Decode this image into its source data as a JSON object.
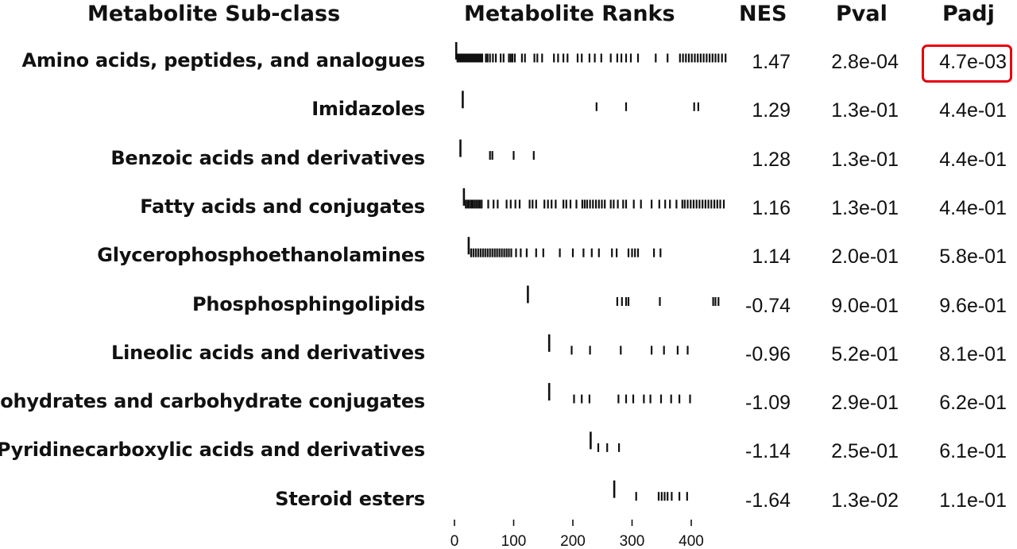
{
  "headers": {
    "name": "Metabolite Sub-class",
    "ranks": "Metabolite Ranks",
    "nes": "NES",
    "pval": "Pval",
    "padj": "Padj"
  },
  "highlight_color": "#e8000b",
  "chart_data": {
    "type": "table",
    "x_axis": {
      "ticks": [
        0,
        100,
        200,
        300,
        400
      ],
      "range": [
        0,
        460
      ]
    },
    "rows": [
      {
        "name": "Amino acids, peptides, and analogues",
        "nes": "1.47",
        "pval": "2.8e-04",
        "padj": "4.7e-03",
        "highlighted": true,
        "ranks": [
          3,
          5,
          7,
          9,
          11,
          13,
          15,
          17,
          19,
          21,
          23,
          25,
          27,
          29,
          31,
          33,
          35,
          37,
          39,
          41,
          43,
          45,
          47,
          53,
          56,
          60,
          65,
          70,
          78,
          83,
          92,
          95,
          98,
          102,
          114,
          119,
          135,
          140,
          148,
          168,
          175,
          184,
          191,
          208,
          215,
          228,
          237,
          248,
          264,
          275,
          282,
          290,
          298,
          310,
          340,
          360,
          381,
          386,
          391,
          396,
          401,
          406,
          411,
          416,
          421,
          426,
          431,
          436,
          441,
          446,
          452,
          458
        ]
      },
      {
        "name": "Imidazoles",
        "nes": "1.29",
        "pval": "1.3e-01",
        "padj": "4.4e-01",
        "highlighted": false,
        "ranks": [
          14,
          240,
          290,
          405,
          412
        ]
      },
      {
        "name": "Benzoic acids and derivatives",
        "nes": "1.28",
        "pval": "1.3e-01",
        "padj": "4.4e-01",
        "highlighted": false,
        "ranks": [
          10,
          60,
          64,
          100,
          134
        ]
      },
      {
        "name": "Fatty acids and conjugates",
        "nes": "1.16",
        "pval": "1.3e-01",
        "padj": "4.4e-01",
        "highlighted": false,
        "ranks": [
          16,
          19,
          22,
          25,
          28,
          31,
          34,
          37,
          40,
          43,
          46,
          57,
          66,
          73,
          88,
          95,
          103,
          110,
          127,
          132,
          138,
          152,
          158,
          164,
          171,
          184,
          189,
          196,
          206,
          216,
          220,
          224,
          229,
          234,
          239,
          244,
          249,
          254,
          264,
          269,
          276,
          285,
          290,
          303,
          315,
          333,
          346,
          356,
          364,
          375,
          385,
          389,
          394,
          399,
          404,
          409,
          414,
          419,
          424,
          429,
          434,
          439,
          444,
          449,
          455
        ]
      },
      {
        "name": "Glycerophosphoethanolamines",
        "nes": "1.14",
        "pval": "2.0e-01",
        "padj": "5.8e-01",
        "highlighted": false,
        "ranks": [
          24,
          28,
          32,
          36,
          40,
          44,
          48,
          52,
          56,
          60,
          64,
          68,
          72,
          76,
          80,
          84,
          88,
          92,
          96,
          104,
          112,
          122,
          138,
          150,
          178,
          200,
          218,
          232,
          244,
          266,
          274,
          294,
          300,
          305,
          310,
          337,
          348
        ]
      },
      {
        "name": "Phosphosphingolipids",
        "nes": "-0.74",
        "pval": "9.0e-01",
        "padj": "9.6e-01",
        "highlighted": false,
        "ranks": [
          124,
          275,
          283,
          290,
          294,
          347,
          437,
          441,
          446
        ]
      },
      {
        "name": "Lineolic acids and derivatives",
        "nes": "-0.96",
        "pval": "5.2e-01",
        "padj": "8.1e-01",
        "highlighted": false,
        "ranks": [
          160,
          198,
          229,
          281,
          333,
          354,
          377,
          394
        ]
      },
      {
        "name": "Carbohydrates and carbohydrate conjugates",
        "nes": "-1.09",
        "pval": "2.9e-01",
        "padj": "6.2e-01",
        "highlighted": false,
        "ranks": [
          160,
          202,
          215,
          228,
          277,
          290,
          302,
          320,
          331,
          349,
          366,
          380,
          398
        ]
      },
      {
        "name": "Pyridinecarboxylic acids and derivatives",
        "nes": "-1.14",
        "pval": "2.5e-01",
        "padj": "6.1e-01",
        "highlighted": false,
        "ranks": [
          230,
          243,
          258,
          278
        ]
      },
      {
        "name": "Steroid esters",
        "nes": "-1.64",
        "pval": "1.3e-02",
        "padj": "1.1e-01",
        "highlighted": false,
        "ranks": [
          270,
          307,
          345,
          350,
          355,
          360,
          367,
          380,
          393
        ]
      }
    ]
  }
}
